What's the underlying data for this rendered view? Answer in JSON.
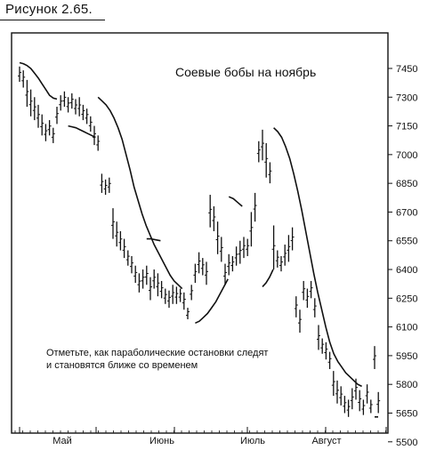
{
  "figure_caption": "Рисунок 2.65.",
  "chart_data": {
    "type": "bar",
    "title": "Соевые бобы на ноябрь",
    "annotation": [
      "Отметьте, как параболические остановки следят",
      "и становятся ближе со временем"
    ],
    "x_months": [
      "Май",
      "Июнь",
      "Июль",
      "Август"
    ],
    "y_ticks": [
      7450,
      7300,
      7150,
      7000,
      6850,
      6700,
      6550,
      6400,
      6250,
      6100,
      5950,
      5800,
      5650,
      5500
    ],
    "ylim": [
      5500,
      7550
    ],
    "price_bars": [
      [
        7460,
        7380
      ],
      [
        7440,
        7350
      ],
      [
        7390,
        7250
      ],
      [
        7340,
        7200
      ],
      [
        7300,
        7180
      ],
      [
        7260,
        7140
      ],
      [
        7210,
        7100
      ],
      [
        7160,
        7070
      ],
      [
        7180,
        7100
      ],
      [
        7140,
        7060
      ],
      [
        7250,
        7160
      ],
      [
        7310,
        7230
      ],
      [
        7330,
        7250
      ],
      [
        7300,
        7220
      ],
      [
        7320,
        7240
      ],
      [
        7290,
        7210
      ],
      [
        7300,
        7200
      ],
      [
        7260,
        7180
      ],
      [
        7240,
        7160
      ],
      [
        7200,
        7120
      ],
      [
        7150,
        7050
      ],
      [
        7100,
        7020
      ],
      [
        6900,
        6800
      ],
      [
        6870,
        6790
      ],
      [
        6880,
        6800
      ],
      [
        6720,
        6560
      ],
      [
        6650,
        6520
      ],
      [
        6600,
        6500
      ],
      [
        6560,
        6460
      ],
      [
        6500,
        6420
      ],
      [
        6470,
        6380
      ],
      [
        6420,
        6330
      ],
      [
        6380,
        6280
      ],
      [
        6400,
        6300
      ],
      [
        6420,
        6320
      ],
      [
        6360,
        6240
      ],
      [
        6400,
        6300
      ],
      [
        6380,
        6260
      ],
      [
        6340,
        6250
      ],
      [
        6300,
        6220
      ],
      [
        6290,
        6200
      ],
      [
        6320,
        6220
      ],
      [
        6310,
        6220
      ],
      [
        6300,
        6230
      ],
      [
        6280,
        6190
      ],
      [
        6200,
        6140
      ],
      [
        6320,
        6240
      ],
      [
        6430,
        6330
      ],
      [
        6490,
        6380
      ],
      [
        6460,
        6370
      ],
      [
        6440,
        6320
      ],
      [
        6790,
        6620
      ],
      [
        6730,
        6600
      ],
      [
        6650,
        6480
      ],
      [
        6570,
        6440
      ],
      [
        6430,
        6320
      ],
      [
        6480,
        6370
      ],
      [
        6470,
        6390
      ],
      [
        6520,
        6420
      ],
      [
        6550,
        6430
      ],
      [
        6570,
        6460
      ],
      [
        6560,
        6470
      ],
      [
        6700,
        6520
      ],
      [
        6800,
        6650
      ],
      [
        7070,
        6960
      ],
      [
        7130,
        6970
      ],
      [
        7060,
        6880
      ],
      [
        6960,
        6850
      ],
      [
        6630,
        6400
      ],
      [
        6500,
        6410
      ],
      [
        6470,
        6390
      ],
      [
        6530,
        6420
      ],
      [
        6580,
        6440
      ],
      [
        6620,
        6500
      ],
      [
        6260,
        6150
      ],
      [
        6190,
        6070
      ],
      [
        6340,
        6240
      ],
      [
        6300,
        6200
      ],
      [
        6340,
        6250
      ],
      [
        6250,
        6150
      ],
      [
        6110,
        5980
      ],
      [
        6040,
        5960
      ],
      [
        6020,
        5930
      ],
      [
        5970,
        5880
      ],
      [
        5870,
        5740
      ],
      [
        5820,
        5700
      ],
      [
        5790,
        5690
      ],
      [
        5740,
        5650
      ],
      [
        5720,
        5630
      ],
      [
        5780,
        5670
      ],
      [
        5830,
        5720
      ],
      [
        5770,
        5660
      ],
      [
        5720,
        5640
      ],
      [
        5800,
        5700
      ],
      [
        5720,
        5650
      ],
      [
        6000,
        5880
      ],
      [
        5760,
        5650
      ]
    ],
    "parabolic_stops": [
      [
        [
          7480,
          7475,
          7465,
          7450,
          7425,
          7400,
          7370,
          7340,
          7310,
          7295,
          7290
        ]
      ],
      [
        [
          7150,
          7145,
          7140,
          7130,
          7120,
          7110,
          7100,
          7090
        ]
      ],
      [
        [
          7300,
          7280,
          7260,
          7230,
          7190,
          7140,
          7080,
          7000,
          6920,
          6830,
          6760,
          6690,
          6630,
          6580,
          6530,
          6490,
          6450,
          6410,
          6370,
          6340,
          6320,
          6300
        ]
      ],
      [
        [
          6560,
          6560,
          6555,
          6550
        ]
      ],
      [
        [
          6120,
          6130,
          6150,
          6170,
          6200,
          6230,
          6270,
          6310,
          6350
        ]
      ],
      [
        [
          6780,
          6770,
          6750,
          6730
        ]
      ],
      [
        [
          6310,
          6330,
          6360,
          6400
        ]
      ],
      [
        [
          7140,
          7120,
          7090,
          7040,
          6980,
          6900,
          6810,
          6710,
          6600,
          6490,
          6380,
          6280,
          6190,
          6100,
          6020,
          5960,
          5920,
          5890,
          5860,
          5840,
          5820,
          5800,
          5790
        ]
      ],
      [
        [
          5630,
          5630
        ]
      ]
    ]
  }
}
